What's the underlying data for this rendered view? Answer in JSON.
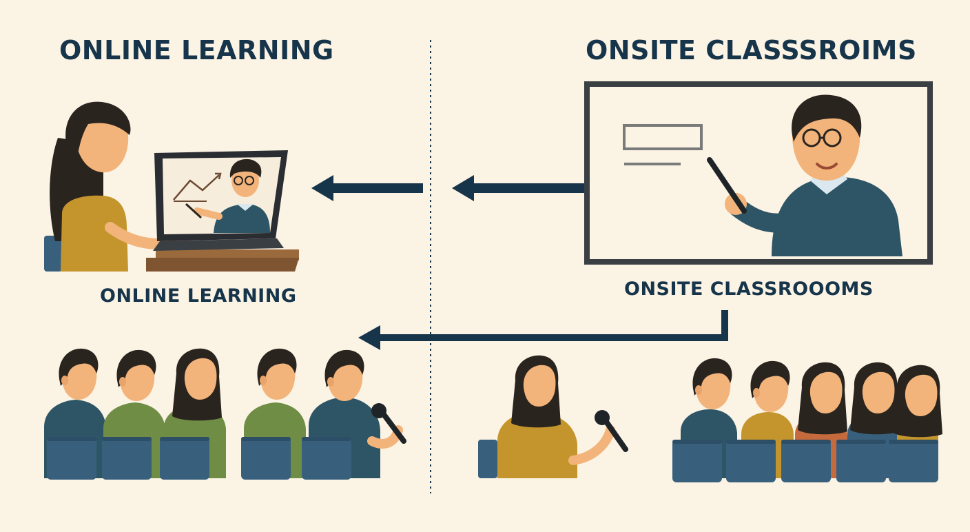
{
  "left": {
    "title": "ONLINE LEARNING",
    "caption": "ONLINE LEARNING"
  },
  "right": {
    "title": "ONSITE CLASSSROIMS",
    "caption": "ONSITE CLASSROOOMS"
  },
  "colors": {
    "background": "#fbf3e4",
    "navy": "#16344a",
    "teal_sweater": "#2e5566",
    "mustard": "#c4952c",
    "green": "#6f8d45",
    "chair_blue": "#38607d",
    "skin": "#f2b47a",
    "hair": "#2a241f",
    "board_frame": "#3a3f44",
    "desk": "#9a6a3c"
  },
  "icons": [
    "arrow-left-icon",
    "microphone-icon",
    "pointer-stick-icon",
    "laptop-icon",
    "chart-line-icon"
  ]
}
